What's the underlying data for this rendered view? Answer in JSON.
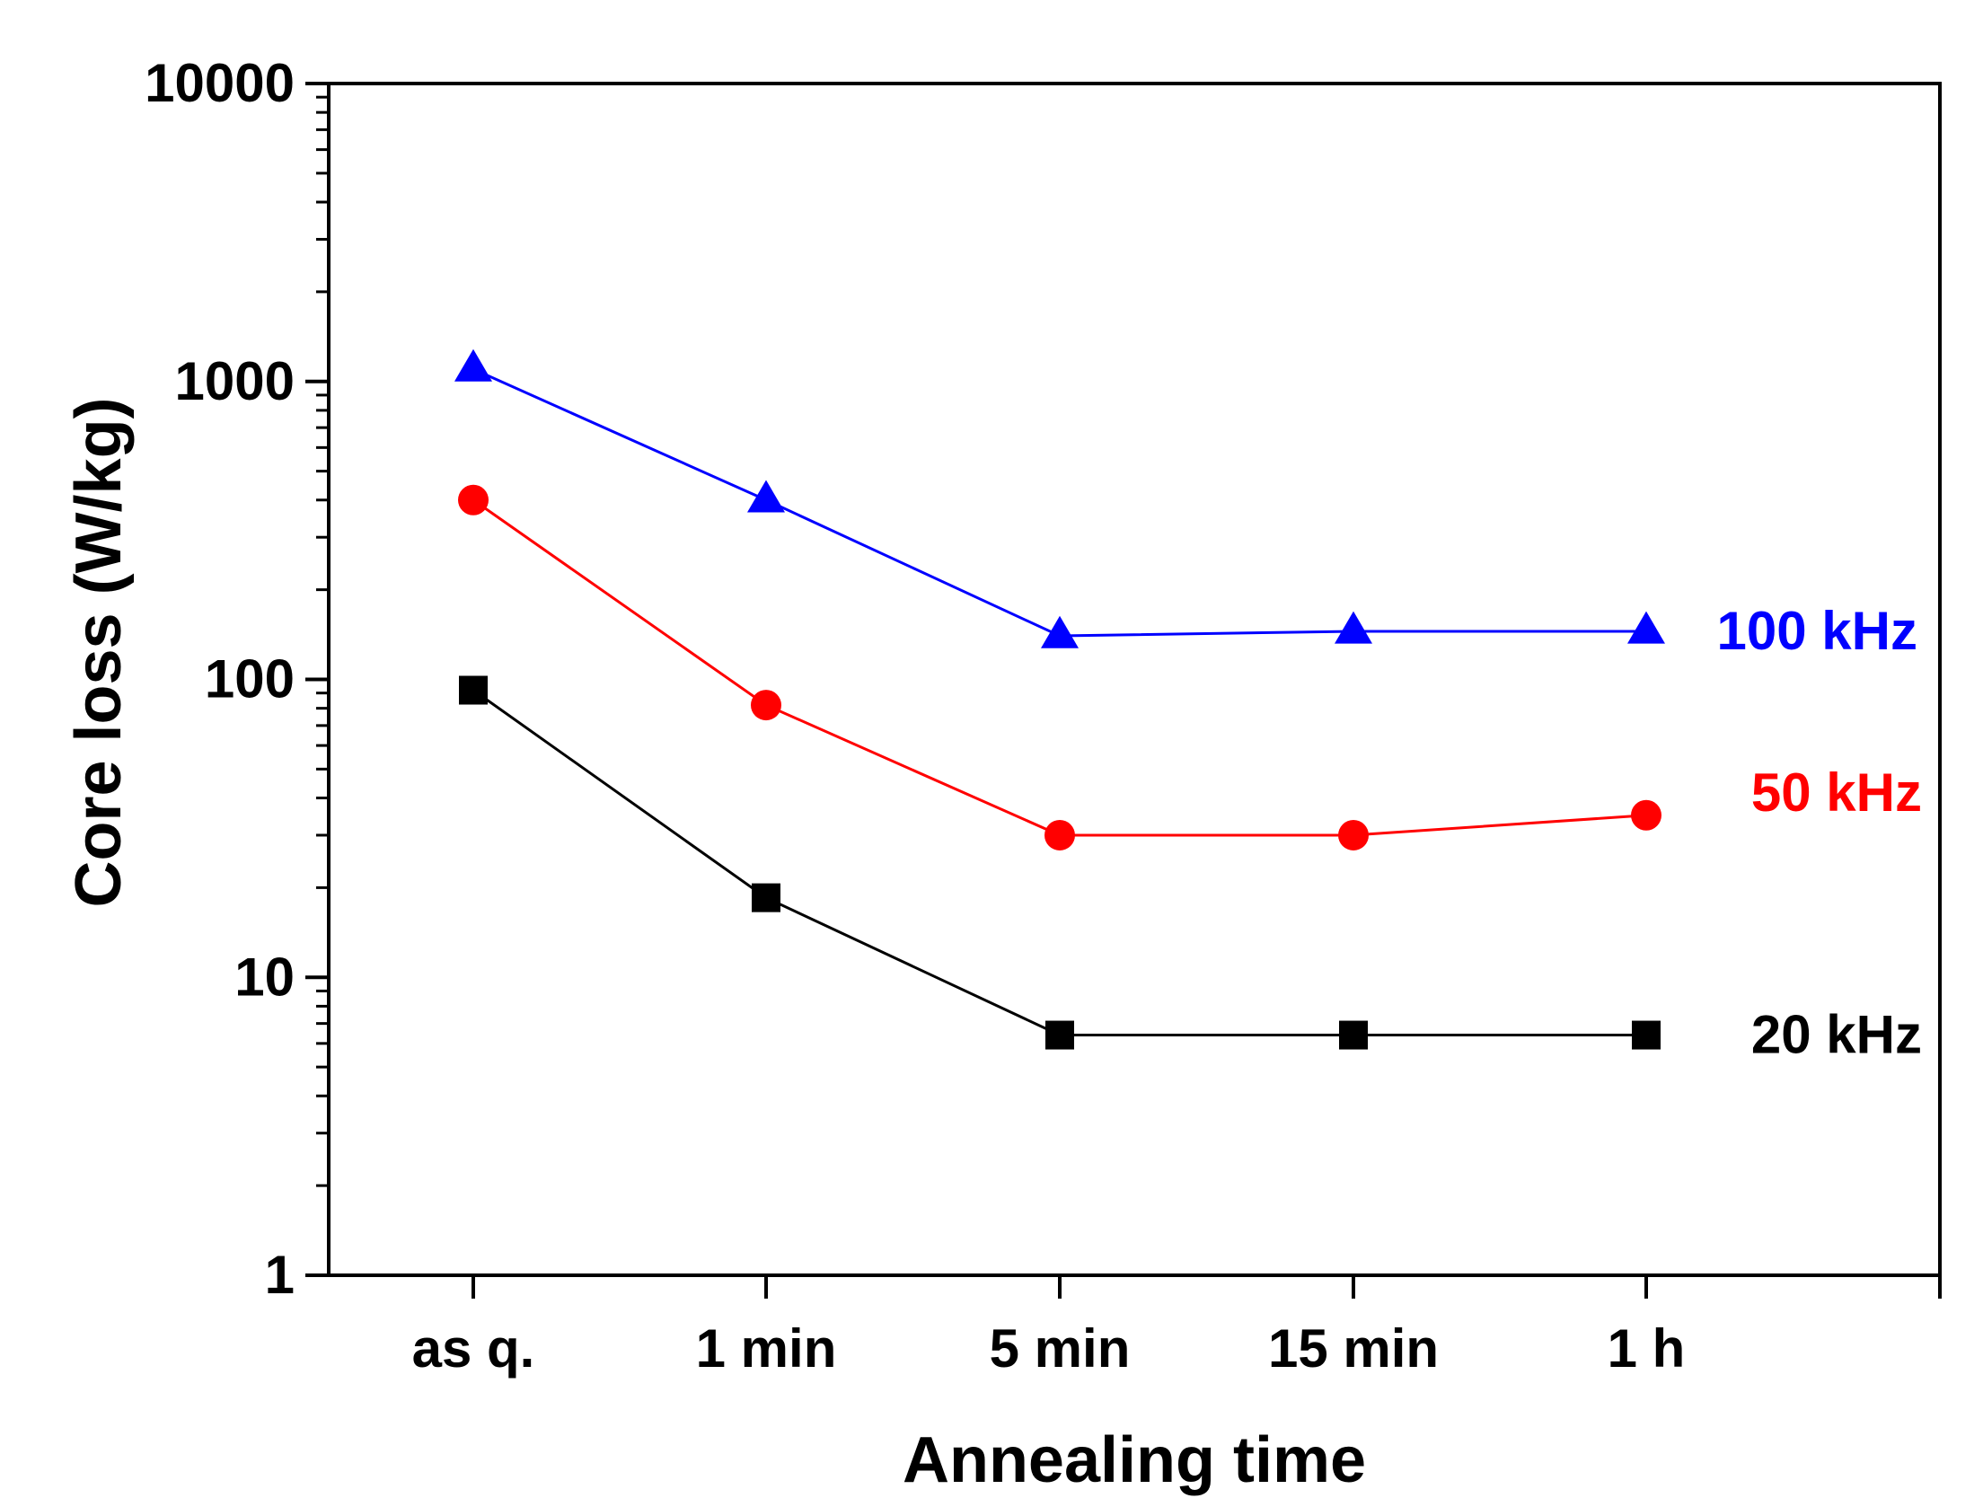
{
  "chart_data": {
    "type": "line",
    "title": "",
    "xlabel": "Annealing time",
    "ylabel": "Core loss (W/kg)",
    "y_scale": "log",
    "ylim": [
      1,
      10000
    ],
    "y_ticks": [
      "1",
      "10",
      "100",
      "1000",
      "10000"
    ],
    "categories": [
      "as q.",
      "1 min",
      "5 min",
      "15 min",
      "1 h"
    ],
    "grid": false,
    "legend": "labels at right end of each series",
    "series": [
      {
        "name": "100 kHz",
        "color": "#0000ff",
        "marker": "triangle",
        "values": [
          1100,
          400,
          140,
          145,
          145
        ]
      },
      {
        "name": "50 kHz",
        "color": "#ff0000",
        "marker": "circle",
        "values": [
          400,
          82,
          30,
          30,
          35
        ]
      },
      {
        "name": "20 kHz",
        "color": "#000000",
        "marker": "square",
        "values": [
          92,
          18.5,
          6.4,
          6.4,
          6.4
        ]
      }
    ]
  }
}
